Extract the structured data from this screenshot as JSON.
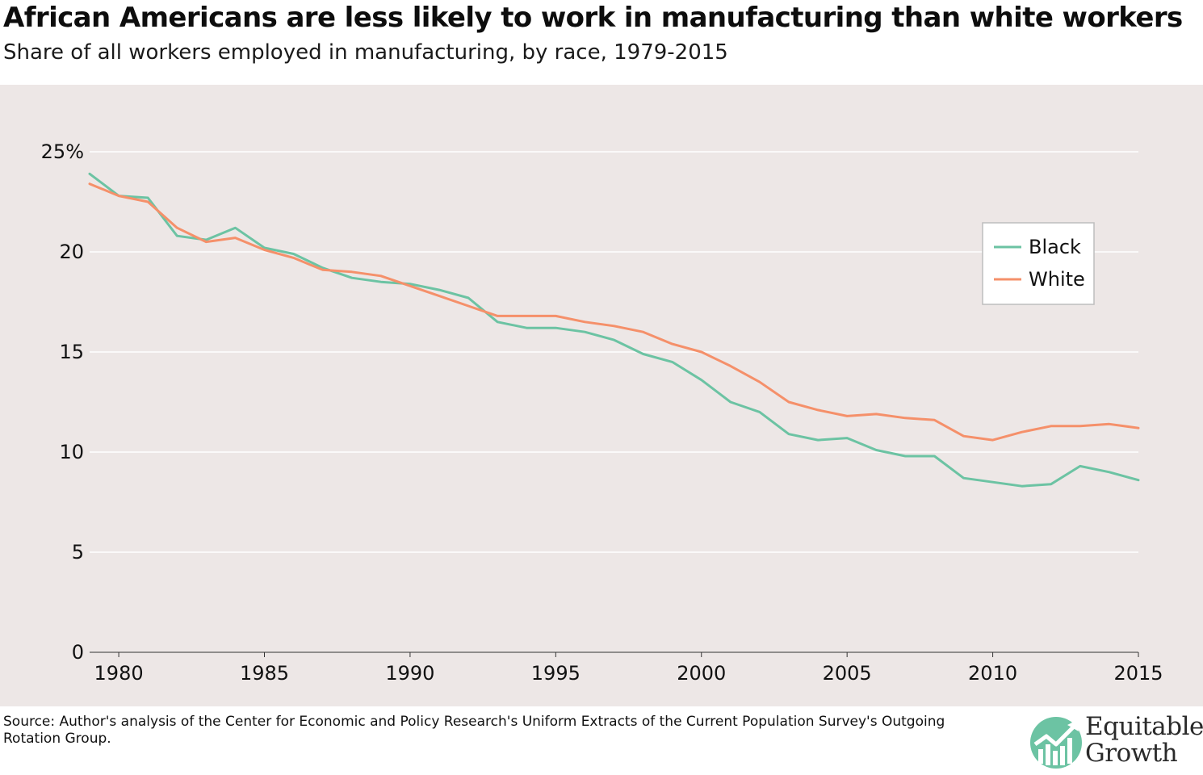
{
  "header": {
    "title": "African Americans are less likely to work in manufacturing than white workers",
    "subtitle": "Share of all workers employed in manufacturing, by race, 1979-2015"
  },
  "footer": {
    "source": "Source: Author's analysis of the Center for Economic and Policy Research's Uniform Extracts of the Current Population Survey's Outgoing Rotation Group.",
    "logo_line1": "Equitable",
    "logo_line2": "Growth"
  },
  "colors": {
    "background": "#ede7e6",
    "black_series": "#6cc3a3",
    "white_series": "#f5906a",
    "grid": "#ffffff",
    "logo_circle": "#6cc3a3"
  },
  "chart_data": {
    "type": "line",
    "title": "African Americans are less likely to work in manufacturing than white workers",
    "subtitle": "Share of all workers employed in manufacturing, by race, 1979-2015",
    "xlabel": "",
    "ylabel": "",
    "xlim": [
      1979,
      2015
    ],
    "ylim": [
      0,
      25
    ],
    "x_ticks": [
      1980,
      1985,
      1990,
      1995,
      2000,
      2005,
      2010,
      2015
    ],
    "y_ticks": [
      0,
      5,
      10,
      15,
      20,
      25
    ],
    "y_tick_labels": [
      "0",
      "5",
      "10",
      "15",
      "20",
      "25%"
    ],
    "grid": true,
    "legend_position": "top-right",
    "x": [
      1979,
      1980,
      1981,
      1982,
      1983,
      1984,
      1985,
      1986,
      1987,
      1988,
      1989,
      1990,
      1991,
      1992,
      1993,
      1994,
      1995,
      1996,
      1997,
      1998,
      1999,
      2000,
      2001,
      2002,
      2003,
      2004,
      2005,
      2006,
      2007,
      2008,
      2009,
      2010,
      2011,
      2012,
      2013,
      2014,
      2015
    ],
    "series": [
      {
        "name": "Black",
        "color": "#6cc3a3",
        "values": [
          23.9,
          22.8,
          22.7,
          20.8,
          20.6,
          21.2,
          20.2,
          19.9,
          19.2,
          18.7,
          18.5,
          18.4,
          18.1,
          17.7,
          16.5,
          16.2,
          16.2,
          16.0,
          15.6,
          14.9,
          14.5,
          13.6,
          12.5,
          12.0,
          10.9,
          10.6,
          10.7,
          10.1,
          9.8,
          9.8,
          8.7,
          8.5,
          8.3,
          8.4,
          9.3,
          9.0,
          8.6
        ]
      },
      {
        "name": "White",
        "color": "#f5906a",
        "values": [
          23.4,
          22.8,
          22.5,
          21.2,
          20.5,
          20.7,
          20.1,
          19.7,
          19.1,
          19.0,
          18.8,
          18.3,
          17.8,
          17.3,
          16.8,
          16.8,
          16.8,
          16.5,
          16.3,
          16.0,
          15.4,
          15.0,
          14.3,
          13.5,
          12.5,
          12.1,
          11.8,
          11.9,
          11.7,
          11.6,
          10.8,
          10.6,
          11.0,
          11.3,
          11.3,
          11.4,
          11.2
        ]
      }
    ]
  }
}
